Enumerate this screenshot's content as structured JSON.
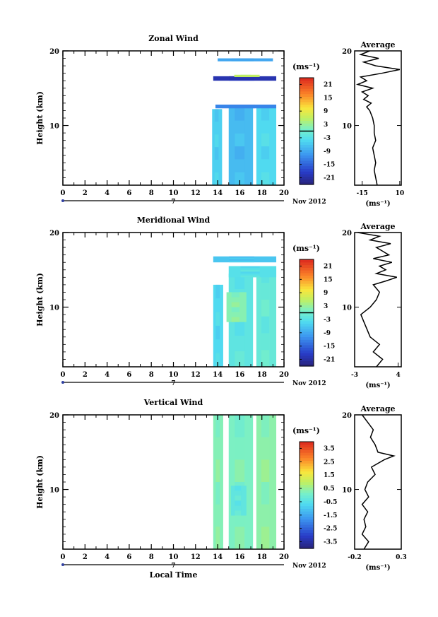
{
  "chart_data": [
    {
      "type": "heatmap",
      "title": "Zonal Wind",
      "ylabel": "Height (km)",
      "xlabel": "",
      "date_label": "Nov 2012",
      "day_marker_label": "7",
      "xlim": [
        0,
        20
      ],
      "ylim": [
        2,
        20
      ],
      "x_ticks": [
        "0",
        "2",
        "4",
        "6",
        "8",
        "10",
        "12",
        "14",
        "16",
        "18",
        "20"
      ],
      "y_ticks": [
        "10",
        "20"
      ],
      "colorbar": {
        "unit": "(ms⁻¹)",
        "range": [
          -24,
          24
        ],
        "ticks": [
          "21",
          "15",
          "9",
          "3",
          "-3",
          "-9",
          "-15",
          "-21"
        ],
        "zero_line_at": 0
      },
      "data_blocks": [
        {
          "t": [
            13.5,
            14.4
          ],
          "h": [
            2,
            12.2
          ],
          "value": -5
        },
        {
          "t": [
            15.0,
            17.2
          ],
          "h": [
            2,
            12.4
          ],
          "value": -7
        },
        {
          "t": [
            17.5,
            19.3
          ],
          "h": [
            2,
            12.4
          ],
          "value": -4
        },
        {
          "t": [
            13.6,
            19.3
          ],
          "h": [
            16.0,
            16.6
          ],
          "value": -20
        },
        {
          "t": [
            15.5,
            17.8
          ],
          "h": [
            16.5,
            16.8
          ],
          "value": 6
        },
        {
          "t": [
            14.0,
            19.0
          ],
          "h": [
            18.6,
            19.0
          ],
          "value": -9
        },
        {
          "t": [
            13.8,
            19.3
          ],
          "h": [
            12.3,
            12.8
          ],
          "value": -12
        }
      ],
      "average_profile": {
        "title": "Average",
        "unit": "(ms⁻¹)",
        "xlim": [
          -20,
          11
        ],
        "x_ticks": [
          "-15",
          "10"
        ],
        "y_ticks": [
          "10",
          "20"
        ],
        "height_km": [
          2,
          3,
          4,
          5,
          6,
          7,
          8,
          9,
          10,
          11,
          12,
          12.5,
          13,
          13.5,
          14,
          14.5,
          15,
          15.5,
          16,
          16.5,
          17,
          17.5,
          18,
          18.5,
          19,
          19.5,
          20
        ],
        "wind": [
          -5,
          -6,
          -7,
          -6,
          -7,
          -8,
          -6,
          -7,
          -7,
          -8,
          -10,
          -12,
          -9,
          -14,
          -11,
          -15,
          -8,
          -18,
          -12,
          -16,
          -2,
          10,
          -6,
          -14,
          -4,
          -16,
          -10
        ]
      }
    },
    {
      "type": "heatmap",
      "title": "Meridional Wind",
      "ylabel": "Height (km)",
      "xlabel": "",
      "date_label": "Nov 2012",
      "day_marker_label": "7",
      "xlim": [
        0,
        20
      ],
      "ylim": [
        2,
        20
      ],
      "x_ticks": [
        "0",
        "2",
        "4",
        "6",
        "8",
        "10",
        "12",
        "14",
        "16",
        "18",
        "20"
      ],
      "y_ticks": [
        "10",
        "20"
      ],
      "colorbar": {
        "unit": "(ms⁻¹)",
        "range": [
          -24,
          24
        ],
        "ticks": [
          "21",
          "15",
          "9",
          "3",
          "-3",
          "-9",
          "-15",
          "-21"
        ],
        "zero_line_at": 0
      },
      "data_blocks": [
        {
          "t": [
            13.6,
            14.5
          ],
          "h": [
            2,
            13.0
          ],
          "value": -4
        },
        {
          "t": [
            15.0,
            17.2
          ],
          "h": [
            2,
            14.5
          ],
          "value": -2
        },
        {
          "t": [
            17.5,
            19.3
          ],
          "h": [
            2,
            15.5
          ],
          "value": -1
        },
        {
          "t": [
            14.8,
            16.6
          ],
          "h": [
            8.0,
            12.0
          ],
          "value": 2
        },
        {
          "t": [
            13.6,
            19.3
          ],
          "h": [
            16.0,
            16.8
          ],
          "value": -6
        },
        {
          "t": [
            15.0,
            19.3
          ],
          "h": [
            14.0,
            15.5
          ],
          "value": -3
        }
      ],
      "average_profile": {
        "title": "Average",
        "unit": "(ms⁻¹)",
        "xlim": [
          -3,
          4.5
        ],
        "x_ticks": [
          "-3",
          "4"
        ],
        "y_ticks": [
          "10",
          "20"
        ],
        "height_km": [
          2,
          3,
          4,
          5,
          6,
          7,
          8,
          9,
          10,
          11,
          12,
          13,
          13.5,
          14,
          14.5,
          15,
          15.5,
          16,
          16.5,
          17,
          17.5,
          18,
          18.5,
          19,
          19.5,
          20
        ],
        "wind": [
          0.5,
          1.5,
          0,
          1,
          -0.5,
          -1,
          -1.5,
          -2,
          -0.5,
          0.5,
          1,
          0,
          2,
          3.8,
          0.5,
          2,
          1,
          3,
          0,
          2.5,
          1.5,
          0.5,
          2.8,
          -0.5,
          1,
          -2.5
        ]
      }
    },
    {
      "type": "heatmap",
      "title": "Vertical Wind",
      "ylabel": "Height (km)",
      "xlabel": "Local Time",
      "date_label": "Nov 2012",
      "day_marker_label": "7",
      "xlim": [
        0,
        20
      ],
      "ylim": [
        2,
        20
      ],
      "x_ticks": [
        "0",
        "2",
        "4",
        "6",
        "8",
        "10",
        "12",
        "14",
        "16",
        "18",
        "20"
      ],
      "y_ticks": [
        "10",
        "20"
      ],
      "colorbar": {
        "unit": "(ms⁻¹)",
        "range": [
          -4,
          4
        ],
        "ticks": [
          "3.5",
          "2.5",
          "1.5",
          "0.5",
          "-0.5",
          "-1.5",
          "-2.5",
          "-3.5"
        ],
        "zero_line_at": null
      },
      "data_blocks": [
        {
          "t": [
            13.6,
            14.5
          ],
          "h": [
            2,
            20
          ],
          "value": 0.3
        },
        {
          "t": [
            15.0,
            17.2
          ],
          "h": [
            2,
            20
          ],
          "value": 0.2
        },
        {
          "t": [
            17.5,
            19.3
          ],
          "h": [
            2,
            20
          ],
          "value": 0.4
        },
        {
          "t": [
            15.2,
            16.6
          ],
          "h": [
            6.5,
            10.5
          ],
          "value": -0.3
        }
      ],
      "average_profile": {
        "title": "Average",
        "unit": "(ms⁻¹)",
        "xlim": [
          -0.2,
          0.3
        ],
        "x_ticks": [
          "-0.2",
          "0.3"
        ],
        "y_ticks": [
          "10",
          "20"
        ],
        "height_km": [
          2,
          3,
          4,
          5,
          6,
          7,
          8,
          9,
          10,
          11,
          12,
          13,
          14,
          14.5,
          15,
          16,
          17,
          18,
          19,
          20
        ],
        "wind": [
          -0.1,
          -0.05,
          -0.12,
          -0.08,
          -0.1,
          -0.06,
          -0.12,
          -0.05,
          -0.09,
          -0.06,
          0.02,
          -0.02,
          0.12,
          0.22,
          0.05,
          0.02,
          -0.03,
          0.0,
          -0.06,
          -0.12
        ]
      }
    }
  ]
}
